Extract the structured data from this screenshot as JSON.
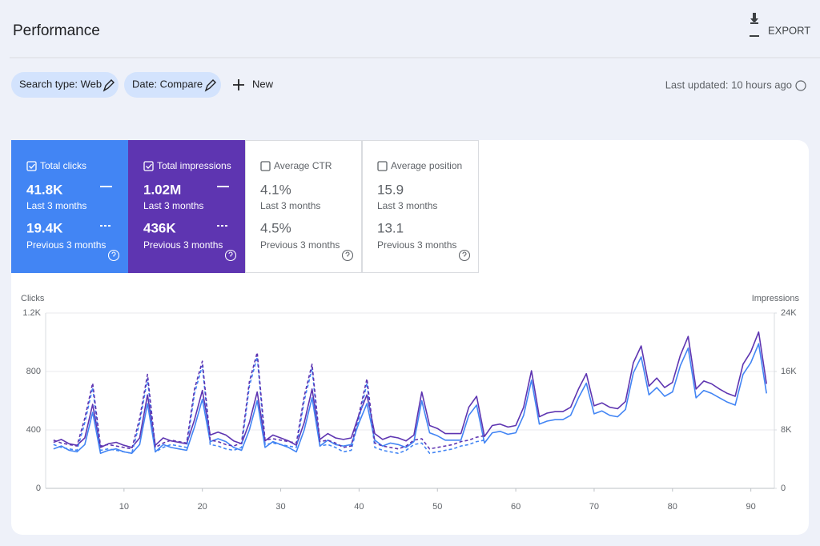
{
  "header": {
    "title": "Performance",
    "export": "EXPORT"
  },
  "filters": [
    "Search type: Web",
    "Date: Compare"
  ],
  "new_button": "New",
  "last_updated": "Last updated: 10 hours ago",
  "metrics": [
    {
      "label": "Total clicks",
      "current": "41.8K",
      "current_label": "Last 3 months",
      "previous": "19.4K",
      "previous_label": "Previous 3 months",
      "selected": true,
      "color": "#4285f4"
    },
    {
      "label": "Total impressions",
      "current": "1.02M",
      "current_label": "Last 3 months",
      "previous": "436K",
      "previous_label": "Previous 3 months",
      "selected": true,
      "color": "#5e35b1"
    },
    {
      "label": "Average CTR",
      "current": "4.1%",
      "current_label": "Last 3 months",
      "previous": "4.5%",
      "previous_label": "Previous 3 months",
      "selected": false,
      "color": "#ffffff"
    },
    {
      "label": "Average position",
      "current": "15.9",
      "current_label": "Last 3 months",
      "previous": "13.1",
      "previous_label": "Previous 3 months",
      "selected": false,
      "color": "#ffffff"
    }
  ],
  "chart_data": {
    "type": "line",
    "ylabel": "Clicks",
    "y2label": "Impressions",
    "x": [
      1,
      2,
      3,
      4,
      5,
      6,
      7,
      8,
      9,
      10,
      11,
      12,
      13,
      14,
      15,
      16,
      17,
      18,
      19,
      20,
      21,
      22,
      23,
      24,
      25,
      26,
      27,
      28,
      29,
      30,
      31,
      32,
      33,
      34,
      35,
      36,
      37,
      38,
      39,
      40,
      41,
      42,
      43,
      44,
      45,
      46,
      47,
      48,
      49,
      50,
      51,
      52,
      53,
      54,
      55,
      56,
      57,
      58,
      59,
      60,
      61,
      62,
      63,
      64,
      65,
      66,
      67,
      68,
      69,
      70,
      71,
      72,
      73,
      74,
      75,
      76,
      77,
      78,
      79,
      80,
      81,
      82,
      83,
      84,
      85,
      86,
      87,
      88,
      89,
      90,
      91,
      92
    ],
    "xlim": [
      0,
      93
    ],
    "xticks": [
      10,
      20,
      30,
      40,
      50,
      60,
      70,
      80,
      90
    ],
    "ylim": [
      0,
      1200
    ],
    "yticks": [
      0,
      400,
      800,
      {
        "value": 1200,
        "label": "1.2K"
      }
    ],
    "y2lim": [
      0,
      24000
    ],
    "y2ticks": [
      0,
      {
        "value": 8000,
        "label": "8K"
      },
      {
        "value": 16000,
        "label": "16K"
      },
      {
        "value": 24000,
        "label": "24K"
      }
    ],
    "grid": true,
    "series": [
      {
        "name": "Total clicks",
        "color": "#4285f4",
        "dashed": false,
        "values": [
          270,
          290,
          260,
          250,
          300,
          520,
          240,
          260,
          270,
          250,
          240,
          300,
          580,
          250,
          300,
          280,
          270,
          260,
          420,
          610,
          320,
          340,
          320,
          280,
          260,
          400,
          600,
          280,
          320,
          300,
          280,
          250,
          400,
          620,
          290,
          330,
          300,
          290,
          300,
          450,
          580,
          330,
          290,
          310,
          300,
          280,
          320,
          600,
          380,
          360,
          330,
          330,
          330,
          500,
          570,
          310,
          380,
          390,
          370,
          380,
          500,
          740,
          440,
          460,
          470,
          470,
          500,
          620,
          720,
          510,
          530,
          500,
          490,
          540,
          790,
          900,
          640,
          690,
          630,
          660,
          840,
          960,
          620,
          670,
          650,
          620,
          590,
          570,
          780,
          860,
          990,
          650
        ]
      },
      {
        "name": "Total impressions",
        "color": "#5e35b1",
        "dashed": false,
        "axis": "y2",
        "values": [
          6300,
          6700,
          6100,
          5900,
          6900,
          11500,
          5600,
          6100,
          6300,
          5900,
          5600,
          6900,
          12800,
          5900,
          6900,
          6500,
          6300,
          6100,
          9400,
          13400,
          7300,
          7700,
          7300,
          6500,
          6100,
          9000,
          13200,
          6500,
          7300,
          6900,
          6500,
          5900,
          9000,
          13600,
          6700,
          7500,
          6900,
          6700,
          6900,
          10100,
          12800,
          7500,
          6700,
          7100,
          6900,
          6500,
          7300,
          13200,
          8600,
          8200,
          7500,
          7500,
          7500,
          11100,
          12600,
          7100,
          8600,
          8800,
          8400,
          8600,
          11100,
          16100,
          9800,
          10300,
          10500,
          10500,
          11100,
          13600,
          15700,
          11300,
          11700,
          11100,
          10900,
          11900,
          17200,
          19500,
          14000,
          15100,
          13800,
          14500,
          18200,
          20800,
          13600,
          14700,
          14300,
          13600,
          13000,
          12600,
          17000,
          18700,
          21400,
          14300
        ]
      },
      {
        "name": "Total clicks (previous)",
        "color": "#4285f4",
        "dashed": true,
        "values": [
          300,
          280,
          270,
          260,
          450,
          690,
          260,
          270,
          260,
          250,
          240,
          450,
          750,
          250,
          280,
          300,
          290,
          280,
          650,
          840,
          300,
          290,
          270,
          260,
          280,
          700,
          900,
          300,
          310,
          300,
          290,
          280,
          600,
          820,
          290,
          300,
          280,
          250,
          260,
          480,
          720,
          280,
          260,
          250,
          240,
          260,
          300,
          310,
          240,
          250,
          260,
          270,
          290,
          300,
          320,
          330,
          null,
          null,
          null,
          null,
          null,
          null,
          null,
          null,
          null,
          null,
          null,
          null,
          null,
          null,
          null,
          null,
          null,
          null,
          null,
          null,
          null,
          null,
          null,
          null,
          null,
          null,
          null,
          null,
          null,
          null,
          null,
          null,
          null,
          null,
          null,
          null
        ]
      },
      {
        "name": "Total impressions (previous)",
        "color": "#5e35b1",
        "dashed": true,
        "axis": "y2",
        "values": [
          6600,
          6200,
          6000,
          5800,
          9600,
          14400,
          5800,
          6000,
          5800,
          5600,
          5400,
          9600,
          15600,
          5600,
          6200,
          6600,
          6400,
          6200,
          13600,
          17400,
          6600,
          6400,
          6000,
          5800,
          6200,
          14600,
          18600,
          6600,
          6800,
          6600,
          6400,
          6200,
          12600,
          17000,
          6400,
          6600,
          6200,
          5600,
          5800,
          10200,
          15000,
          6200,
          5800,
          5600,
          5400,
          5800,
          6600,
          6800,
          5400,
          5600,
          5800,
          6000,
          6400,
          6600,
          7000,
          7200,
          null,
          null,
          null,
          null,
          null,
          null,
          null,
          null,
          null,
          null,
          null,
          null,
          null,
          null,
          null,
          null,
          null,
          null,
          null,
          null,
          null,
          null,
          null,
          null,
          null,
          null,
          null,
          null,
          null,
          null,
          null,
          null,
          null,
          null,
          null,
          null
        ]
      }
    ]
  }
}
